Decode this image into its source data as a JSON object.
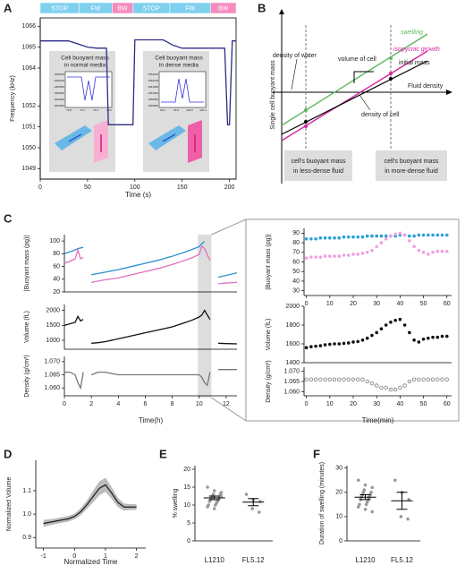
{
  "panels": [
    "A",
    "B",
    "C",
    "D",
    "E",
    "F"
  ],
  "panel_a": {
    "insets": [
      {
        "title": [
          "Cell buoyant mass",
          "in normal media"
        ],
        "yticks": [
          "1065150",
          "1065100",
          "1065050",
          "1065000",
          "1064950",
          "1064900"
        ],
        "xticks": [
          "73.8",
          "74.2",
          "74.6",
          "75.0"
        ]
      },
      {
        "title": [
          "Cell buoyant mass",
          "in dense media"
        ],
        "yticks": [
          "1051150",
          "1051100",
          "1051050",
          "1051000",
          "1050950",
          "1050900"
        ],
        "xticks": [
          "99.2",
          "99.6",
          "100.0",
          "100.4"
        ]
      }
    ]
  },
  "panel_b": {
    "y_label": "Single cell buoyant mass",
    "x_label": "Fluid density",
    "swelling": "swelling",
    "isopycnic_growth": "isopycnic growth",
    "initial_mass": "initial mass",
    "volume_of_cell": "volume of cell",
    "density_of_water": "density of water",
    "density_of_cell": "density of cell",
    "box_left": [
      "cell's buoyant mass",
      "in less-dense fluid"
    ],
    "box_right": [
      "cell's buoyant mass",
      "in more-dense fluid"
    ]
  },
  "chart_data": [
    {
      "type": "line",
      "x_label": "Time (s)",
      "y_label": "Frequency (kHz)",
      "xlim": [
        0,
        207
      ],
      "ylim": [
        1048.5,
        1066.4
      ],
      "y_break": [
        1052.7,
        1063.4
      ],
      "xticks": [
        0,
        50,
        100,
        150,
        200
      ],
      "yticks": [
        1066,
        1065,
        1064,
        1052,
        1051,
        1050,
        1049
      ],
      "phases": [
        {
          "label": "STOP",
          "start": 0,
          "end": 41,
          "color": "#7fd0ef"
        },
        {
          "label": "FW",
          "start": 41,
          "end": 76,
          "color": "#7fd0ef"
        },
        {
          "label": "BW",
          "start": 76,
          "end": 98,
          "color": "#f48cc0"
        },
        {
          "label": "STOP",
          "start": 98,
          "end": 137,
          "color": "#7fd0ef"
        },
        {
          "label": "FW",
          "start": 137,
          "end": 180,
          "color": "#7fd0ef"
        },
        {
          "label": "BW",
          "start": 180,
          "end": 207,
          "color": "#f48cc0"
        }
      ],
      "x": [
        0,
        5,
        30,
        40,
        50,
        60,
        70,
        72,
        75,
        98,
        100,
        103,
        130,
        140,
        150,
        170,
        195,
        198,
        200,
        203,
        207
      ],
      "series": [
        {
          "color": "#2b2b86",
          "values": [
            1065.3,
            1065.3,
            1065.3,
            1065.15,
            1065.0,
            1064.95,
            1064.95,
            1051.1,
            1051.1,
            1051.1,
            1065.35,
            1065.35,
            1065.35,
            1065.1,
            1064.95,
            1064.95,
            1064.95,
            1051.1,
            1051.1,
            1065.3,
            1065.3
          ]
        }
      ]
    },
    {
      "type": "line",
      "y_label": "|Buoyant mass (pg)|",
      "xlim": [
        0,
        12.8
      ],
      "ylim": [
        20,
        110
      ],
      "yticks": [
        20,
        40,
        60,
        80,
        100
      ],
      "highlight_x": [
        9.9,
        10.9
      ],
      "x": [
        0,
        0.4,
        0.8,
        1.0,
        1.2,
        1.4,
        1.7,
        2.0,
        2.5,
        3,
        4,
        5,
        6,
        7,
        8,
        9,
        9.5,
        10,
        10.2,
        10.4,
        10.6,
        10.8,
        11.1,
        11.4,
        12,
        12.8
      ],
      "series": [
        {
          "color": "#2a8fd0",
          "values": [
            80,
            83,
            86,
            88,
            89,
            90,
            null,
            47,
            49,
            51,
            55,
            60,
            65,
            70,
            76,
            83,
            87,
            91,
            96,
            99,
            null,
            null,
            null,
            43,
            46,
            50
          ]
        },
        {
          "color": "#e070c0",
          "values": [
            65,
            68,
            72,
            86,
            72,
            74,
            null,
            35,
            37,
            39,
            42,
            47,
            52,
            57,
            63,
            70,
            74,
            79,
            92,
            88,
            78,
            70,
            null,
            33,
            34,
            35
          ]
        }
      ]
    },
    {
      "type": "line",
      "y_label": "Volume (fL)",
      "xlim": [
        0,
        12.8
      ],
      "ylim": [
        700,
        2200
      ],
      "yticks": [
        1000,
        1500,
        2000
      ],
      "x": [
        0,
        0.4,
        0.8,
        1.0,
        1.2,
        1.4,
        1.7,
        2.0,
        2.5,
        3,
        4,
        5,
        6,
        7,
        8,
        9,
        9.5,
        10,
        10.2,
        10.4,
        10.6,
        10.8,
        11.1,
        11.4,
        12,
        12.8
      ],
      "series": [
        {
          "color": "#111",
          "values": [
            1500,
            1550,
            1600,
            1800,
            1650,
            1700,
            null,
            900,
            920,
            950,
            1050,
            1150,
            1250,
            1350,
            1450,
            1600,
            1680,
            1780,
            1850,
            2000,
            1850,
            1700,
            null,
            900,
            890,
            880
          ]
        }
      ]
    },
    {
      "type": "line",
      "x_label": "Time(h)",
      "y_label": "Density (g/cm³)",
      "xlim": [
        0,
        12.8
      ],
      "ylim": [
        1.057,
        1.072
      ],
      "xticks": [
        0,
        2,
        4,
        6,
        8,
        10,
        12
      ],
      "yticks": [
        {
          "value": 1.06,
          "label": "1.060"
        },
        1.065,
        {
          "value": 1.07,
          "label": "1.070"
        }
      ],
      "x": [
        0,
        0.4,
        0.8,
        1.0,
        1.2,
        1.4,
        1.7,
        2.0,
        2.5,
        3,
        4,
        5,
        6,
        7,
        8,
        9,
        9.5,
        10,
        10.2,
        10.4,
        10.6,
        10.8,
        11.1,
        11.4,
        12,
        12.8
      ],
      "series": [
        {
          "color": "#777",
          "values": [
            1.066,
            1.066,
            1.065,
            1.062,
            1.06,
            1.066,
            null,
            1.065,
            1.066,
            1.066,
            1.065,
            1.065,
            1.065,
            1.065,
            1.065,
            1.065,
            1.065,
            1.065,
            1.064,
            1.062,
            1.061,
            1.066,
            null,
            1.067,
            1.067,
            1.067
          ]
        }
      ]
    },
    {
      "type": "scatter",
      "y_label": "|Buoyant mass (pg)|",
      "xlim": [
        -1,
        62
      ],
      "ylim": [
        25,
        95
      ],
      "yticks": [
        30,
        40,
        50,
        60,
        70,
        80,
        90
      ],
      "xticks": [
        0,
        10,
        20,
        30,
        40,
        50,
        60
      ],
      "x": [
        0,
        2,
        4,
        6,
        8,
        10,
        12,
        14,
        16,
        18,
        20,
        22,
        24,
        26,
        28,
        30,
        32,
        34,
        36,
        38,
        40,
        42,
        44,
        46,
        48,
        50,
        52,
        54,
        56,
        58,
        60
      ],
      "series": [
        {
          "color": "#2a9fd6",
          "values": [
            84,
            84,
            84,
            85,
            85,
            85,
            85,
            85,
            86,
            86,
            86,
            86,
            86,
            87,
            87,
            87,
            87,
            87,
            87,
            87,
            88,
            88,
            87,
            87,
            88,
            88,
            88,
            88,
            88,
            88,
            88
          ]
        },
        {
          "color": "#f0a0e0",
          "values": [
            64,
            65,
            65,
            65,
            66,
            66,
            66,
            66,
            67,
            67,
            68,
            68,
            69,
            70,
            72,
            76,
            80,
            84,
            87,
            89,
            90,
            88,
            82,
            76,
            72,
            70,
            68,
            70,
            71,
            71,
            71
          ]
        }
      ]
    },
    {
      "type": "scatter",
      "y_label": "Volume (fL)",
      "xlim": [
        -1,
        62
      ],
      "ylim": [
        1400,
        2000
      ],
      "yticks": [
        1400,
        1600,
        1800,
        2000
      ],
      "x": [
        0,
        2,
        4,
        6,
        8,
        10,
        12,
        14,
        16,
        18,
        20,
        22,
        24,
        26,
        28,
        30,
        32,
        34,
        36,
        38,
        40,
        42,
        44,
        46,
        48,
        50,
        52,
        54,
        56,
        58,
        60
      ],
      "series": [
        {
          "color": "#111",
          "values": [
            1560,
            1570,
            1575,
            1580,
            1590,
            1595,
            1600,
            1600,
            1605,
            1610,
            1620,
            1625,
            1640,
            1660,
            1690,
            1720,
            1760,
            1800,
            1830,
            1850,
            1860,
            1800,
            1720,
            1640,
            1620,
            1650,
            1660,
            1670,
            1670,
            1680,
            1680
          ]
        }
      ]
    },
    {
      "type": "scatter",
      "x_label": "Time(min)",
      "y_label": "Density (g/cm³)",
      "marker": "open",
      "xlim": [
        -1,
        62
      ],
      "ylim": [
        1.058,
        1.072
      ],
      "xticks": [
        0,
        10,
        20,
        30,
        40,
        50,
        60
      ],
      "yticks": [
        {
          "value": 1.06,
          "label": "1.060"
        },
        1.065,
        {
          "value": 1.07,
          "label": "1.070"
        }
      ],
      "x": [
        0,
        2,
        4,
        6,
        8,
        10,
        12,
        14,
        16,
        18,
        20,
        22,
        24,
        26,
        28,
        30,
        32,
        34,
        36,
        38,
        40,
        42,
        44,
        46,
        48,
        50,
        52,
        54,
        56,
        58,
        60
      ],
      "series": [
        {
          "color": "#666",
          "values": [
            1.066,
            1.066,
            1.066,
            1.066,
            1.066,
            1.066,
            1.066,
            1.066,
            1.066,
            1.066,
            1.066,
            1.066,
            1.066,
            1.065,
            1.064,
            1.063,
            1.062,
            1.062,
            1.061,
            1.061,
            1.062,
            1.063,
            1.065,
            1.066,
            1.066,
            1.066,
            1.066,
            1.066,
            1.066,
            1.066,
            1.066
          ]
        }
      ]
    },
    {
      "type": "line",
      "x_label": "Normalized Time",
      "y_label": "Normalized Volume",
      "xlim": [
        -1.25,
        2.3
      ],
      "ylim": [
        0.855,
        1.23
      ],
      "xticks": [
        -1,
        0,
        1,
        2
      ],
      "yticks": [
        0.9,
        {
          "value": 1,
          "label": "1.0"
        },
        1.1
      ],
      "x": [
        -1,
        -0.8,
        -0.6,
        -0.4,
        -0.2,
        0,
        0.2,
        0.4,
        0.6,
        0.8,
        1.0,
        1.2,
        1.4,
        1.6,
        1.8,
        2.0
      ],
      "band": {
        "color": "#bbbbbb",
        "lower": [
          0.945,
          0.952,
          0.958,
          0.963,
          0.968,
          0.978,
          0.995,
          1.022,
          1.05,
          1.08,
          1.095,
          1.065,
          1.03,
          1.015,
          1.017,
          1.018
        ],
        "upper": [
          0.975,
          0.978,
          0.982,
          0.987,
          0.992,
          1.002,
          1.025,
          1.058,
          1.1,
          1.14,
          1.155,
          1.115,
          1.07,
          1.045,
          1.043,
          1.042
        ]
      },
      "series": [
        {
          "color": "#222",
          "values": [
            0.96,
            0.965,
            0.97,
            0.975,
            0.98,
            0.99,
            1.01,
            1.04,
            1.075,
            1.11,
            1.125,
            1.09,
            1.05,
            1.03,
            1.03,
            1.03
          ]
        }
      ]
    },
    {
      "type": "strip",
      "y_label": "% swelling",
      "ylim": [
        0,
        21
      ],
      "yticks": [
        0,
        5,
        10,
        15,
        20
      ],
      "categories": [
        "L1210",
        "FL5.12"
      ],
      "color": "#999",
      "groups": [
        {
          "values": [
            15,
            14,
            13.5,
            13,
            13,
            12.5,
            12,
            12,
            11.5,
            11.5,
            11,
            11,
            10.5,
            10,
            10,
            9.5,
            9,
            12.5
          ],
          "mean": 12,
          "error": 0.5
        },
        {
          "values": [
            13,
            11.5,
            11,
            9,
            8
          ],
          "mean": 10.8,
          "error": 1
        }
      ]
    },
    {
      "type": "strip",
      "y_label": "Duration of swelling (minutes)",
      "ylim": [
        0,
        31
      ],
      "yticks": [
        0,
        10,
        20,
        30
      ],
      "categories": [
        "L1210",
        "FL5.12"
      ],
      "color": "#999",
      "groups": [
        {
          "values": [
            25,
            23,
            22,
            21,
            20,
            20,
            19,
            19,
            18,
            18,
            17,
            17,
            16,
            15,
            15,
            14,
            13,
            12
          ],
          "mean": 18,
          "error": 1
        },
        {
          "values": [
            25,
            20,
            17,
            10,
            9
          ],
          "mean": 16.5,
          "error": 3.5
        }
      ]
    }
  ]
}
